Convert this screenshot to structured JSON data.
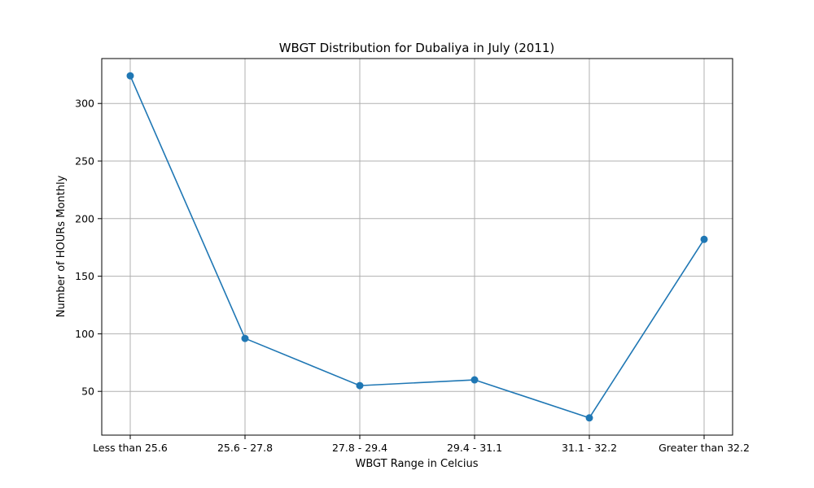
{
  "chart_data": {
    "type": "line",
    "title": "WBGT Distribution for Dubaliya in July (2011)",
    "xlabel": "WBGT Range in Celcius",
    "ylabel": "Number of HOURs Monthly",
    "categories": [
      "Less than 25.6",
      "25.6 - 27.8",
      "27.8 - 29.4",
      "29.4 - 31.1",
      "31.1 - 32.2",
      "Greater than 32.2"
    ],
    "series": [
      {
        "values": [
          324,
          96,
          55,
          60,
          27,
          182
        ],
        "color": "#1f77b4",
        "marker": "circle"
      }
    ],
    "ylim": [
      12,
      339
    ],
    "yticks": [
      50,
      100,
      150,
      200,
      250,
      300
    ],
    "grid": true,
    "legend": "none"
  }
}
